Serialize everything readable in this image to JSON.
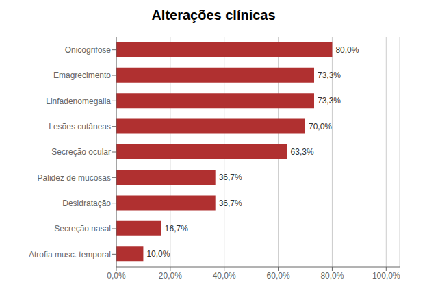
{
  "chart_data": {
    "type": "bar",
    "title": "Alterações clínicas",
    "orientation": "horizontal",
    "categories": [
      "Atrofia musc. temporal",
      "Secreção nasal",
      "Desidratação",
      "Palidez de mucosas",
      "Secreção ocular",
      "Lesões cutâneas",
      "Linfadenomegalia",
      "Emagrecimento",
      "Onicogrifose"
    ],
    "values": [
      10.0,
      16.7,
      36.7,
      36.7,
      63.3,
      70.0,
      73.3,
      73.3,
      80.0
    ],
    "value_labels": [
      "10,0%",
      "16,7%",
      "36,7%",
      "36,7%",
      "63,3%",
      "70,0%",
      "73,3%",
      "73,3%",
      "80,0%"
    ],
    "data_labels": true,
    "color": "#b03030",
    "xlim": [
      0,
      105
    ],
    "xticks": [
      {
        "value": 0,
        "label": "0,0%"
      },
      {
        "value": 20,
        "label": "20,0%"
      },
      {
        "value": 40,
        "label": "40,0%"
      },
      {
        "value": 60,
        "label": "60,0%"
      },
      {
        "value": 80,
        "label": "80,0%"
      },
      {
        "value": 100,
        "label": "100,0%"
      }
    ],
    "grid": true
  }
}
